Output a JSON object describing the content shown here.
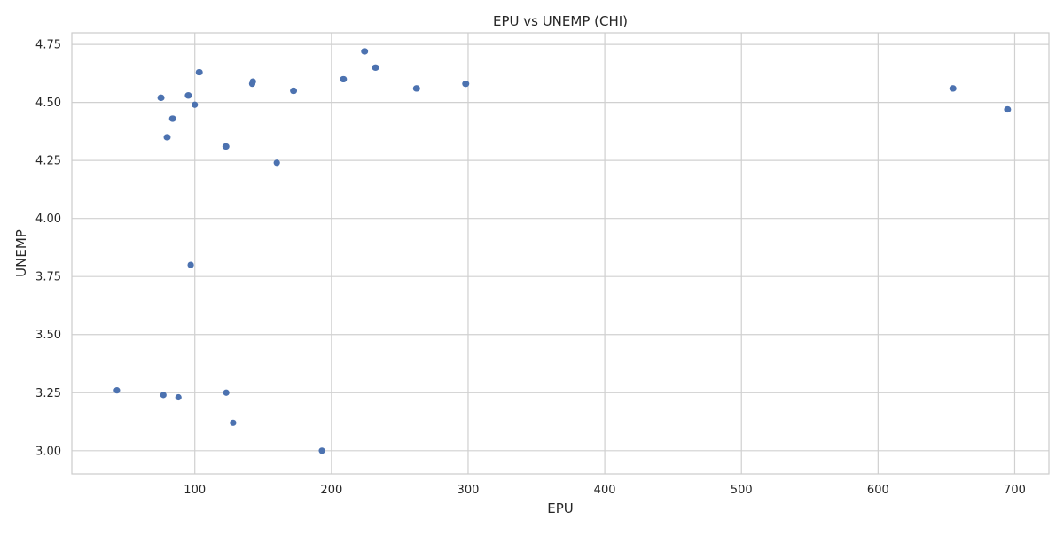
{
  "chart_data": {
    "type": "scatter",
    "title": "EPU vs UNEMP (CHI)",
    "xlabel": "EPU",
    "ylabel": "UNEMP",
    "xlim": [
      10,
      725
    ],
    "ylim": [
      2.9,
      4.8
    ],
    "xticks": [
      100,
      200,
      300,
      400,
      500,
      600,
      700
    ],
    "yticks": [
      3.0,
      3.25,
      3.5,
      3.75,
      4.0,
      4.25,
      4.5,
      4.75
    ],
    "xtick_labels": [
      "100",
      "200",
      "300",
      "400",
      "500",
      "600",
      "700"
    ],
    "ytick_labels": [
      "3.00",
      "3.25",
      "3.50",
      "3.75",
      "4.00",
      "4.25",
      "4.50",
      "4.75"
    ],
    "grid": true,
    "marker_color": "#4c72b0",
    "points": [
      {
        "x": 75,
        "y": 4.52
      },
      {
        "x": 75.5,
        "y": 4.52
      },
      {
        "x": 79.5,
        "y": 4.35
      },
      {
        "x": 80,
        "y": 4.35
      },
      {
        "x": 83.5,
        "y": 4.43
      },
      {
        "x": 84,
        "y": 4.43
      },
      {
        "x": 95,
        "y": 4.53
      },
      {
        "x": 95.5,
        "y": 4.53
      },
      {
        "x": 100,
        "y": 4.49
      },
      {
        "x": 103,
        "y": 4.63
      },
      {
        "x": 103.5,
        "y": 4.63
      },
      {
        "x": 122.5,
        "y": 4.31
      },
      {
        "x": 123,
        "y": 4.31
      },
      {
        "x": 142,
        "y": 4.58
      },
      {
        "x": 142.5,
        "y": 4.59
      },
      {
        "x": 160,
        "y": 4.24
      },
      {
        "x": 172,
        "y": 4.55
      },
      {
        "x": 172.5,
        "y": 4.55
      },
      {
        "x": 208.5,
        "y": 4.6
      },
      {
        "x": 209,
        "y": 4.6
      },
      {
        "x": 224,
        "y": 4.72
      },
      {
        "x": 224.5,
        "y": 4.72
      },
      {
        "x": 232,
        "y": 4.65
      },
      {
        "x": 232.5,
        "y": 4.65
      },
      {
        "x": 262,
        "y": 4.56
      },
      {
        "x": 262.5,
        "y": 4.56
      },
      {
        "x": 298,
        "y": 4.58
      },
      {
        "x": 298.5,
        "y": 4.58
      },
      {
        "x": 654.5,
        "y": 4.56
      },
      {
        "x": 655,
        "y": 4.56
      },
      {
        "x": 694.5,
        "y": 4.47
      },
      {
        "x": 695,
        "y": 4.47
      },
      {
        "x": 97,
        "y": 3.8
      },
      {
        "x": 43,
        "y": 3.26
      },
      {
        "x": 77,
        "y": 3.24
      },
      {
        "x": 88,
        "y": 3.23
      },
      {
        "x": 123,
        "y": 3.25
      },
      {
        "x": 128,
        "y": 3.12
      },
      {
        "x": 193,
        "y": 3.0
      }
    ]
  }
}
